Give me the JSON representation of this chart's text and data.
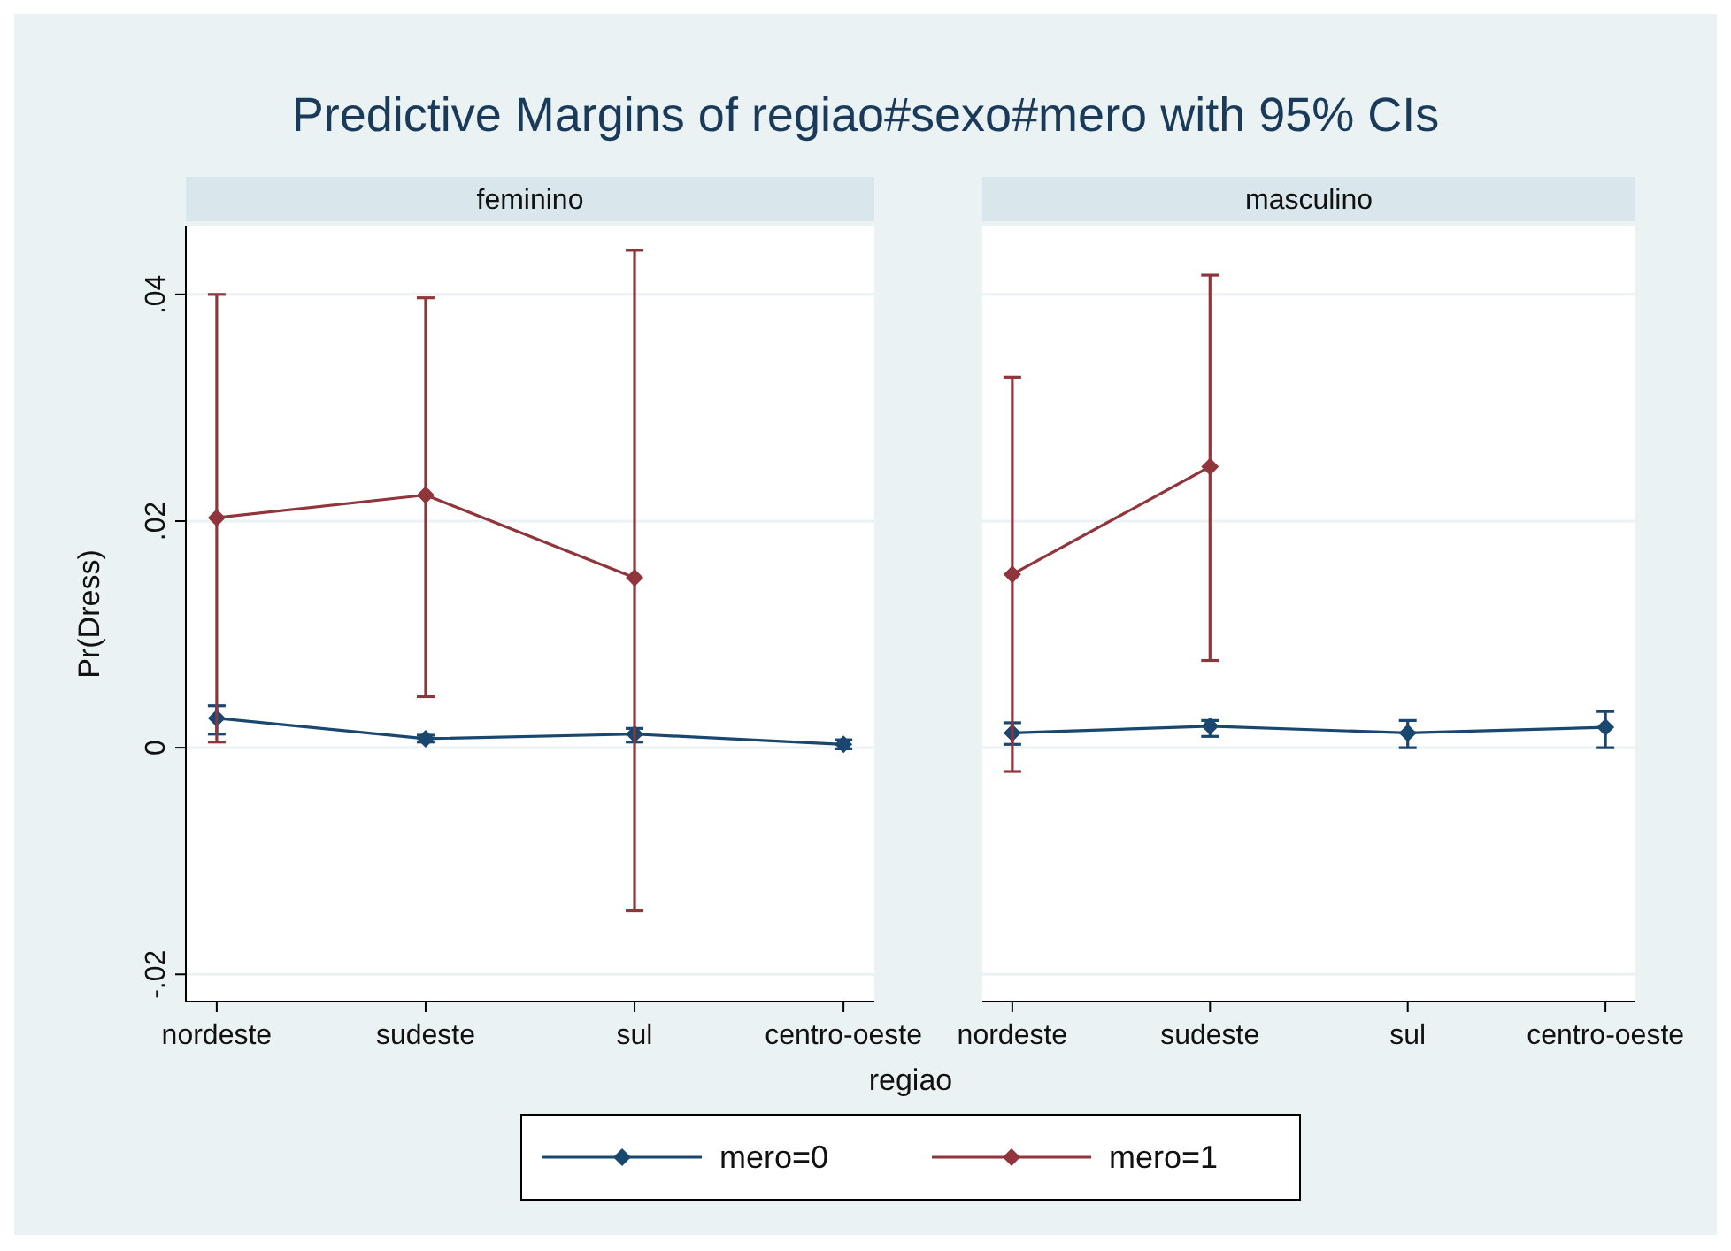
{
  "chart_data": [
    {
      "type": "line",
      "title": "Predictive Margins of regiao#sexo#mero with 95% CIs",
      "subtitle": "feminino",
      "ylabel": "Pr(Dress)",
      "categories": [
        "nordeste",
        "sudeste",
        "sul",
        "centro-oeste"
      ],
      "ylim": [
        -0.0224,
        0.046
      ],
      "yticks": [
        {
          "value": -0.02,
          "label": "-.02"
        },
        {
          "value": 0,
          "label": "0"
        },
        {
          "value": 0.02,
          "label": ".02"
        },
        {
          "value": 0.04,
          "label": ".04"
        }
      ],
      "grid": "y",
      "marker": "diamond",
      "line_style": "solid",
      "series": [
        {
          "color": "#1a476f",
          "values": [
            0.0026,
            0.0008,
            0.0012,
            0.0003
          ],
          "errors": [
            [
              0.0012,
              0.0037
            ],
            [
              0.0005,
              0.0011
            ],
            [
              0.0005,
              0.0017
            ],
            [
              -0.0001,
              0.0007
            ]
          ]
        },
        {
          "color": "#90353b",
          "values": [
            0.0203,
            0.0223,
            0.015,
            null
          ],
          "errors": [
            [
              0.0005,
              0.04
            ],
            [
              0.0045,
              0.0397
            ],
            [
              -0.0144,
              0.0439
            ],
            null
          ]
        }
      ]
    },
    {
      "type": "line",
      "subtitle": "masculino",
      "xlabel": "regiao",
      "categories": [
        "nordeste",
        "sudeste",
        "sul",
        "centro-oeste"
      ],
      "ylim": [
        -0.0224,
        0.046
      ],
      "grid": "y",
      "marker": "diamond",
      "line_style": "solid",
      "tick_labels": "x",
      "legend": "bottom",
      "yticks": [
        -0.02,
        0,
        0.02,
        0.04
      ],
      "series": [
        {
          "name": "mero=0",
          "color": "#1a476f",
          "values": [
            0.0013,
            0.0019,
            0.0013,
            0.0018
          ],
          "errors": [
            [
              0.0003,
              0.0022
            ],
            [
              0.001,
              0.0024
            ],
            [
              0,
              0.0024
            ],
            [
              0,
              0.0032
            ]
          ]
        },
        {
          "name": "mero=1",
          "color": "#90353b",
          "values": [
            0.0153,
            0.0248,
            null,
            null
          ],
          "errors": [
            [
              -0.0021,
              0.0327
            ],
            [
              0.0077,
              0.0417
            ],
            null,
            null
          ]
        }
      ]
    }
  ]
}
